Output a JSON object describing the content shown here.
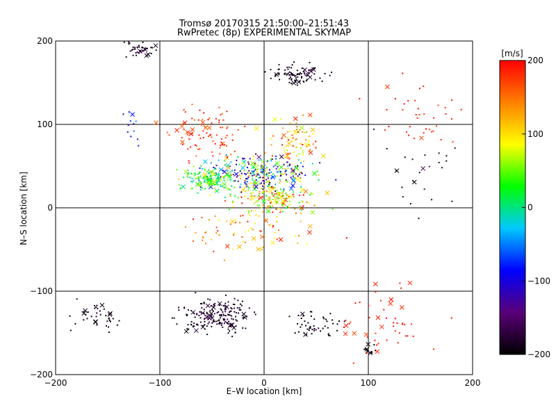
{
  "chart_data": {
    "type": "scatter",
    "title": "Tromsø 20170315 21:50:00–21:51:43",
    "subtitle": "RwPretec (8p) EXPERIMENTAL SKYMAP",
    "xlabel": "E–W location [km]",
    "ylabel": "N–S location [km]",
    "xlim": [
      -200,
      200
    ],
    "ylim": [
      -200,
      200
    ],
    "x_ticks": [
      -200,
      -100,
      0,
      100,
      200
    ],
    "y_ticks": [
      -200,
      -100,
      0,
      100,
      200
    ],
    "x_tick_labels": [
      "−200",
      "−100",
      "0",
      "100",
      "200"
    ],
    "y_tick_labels": [
      "−200",
      "−100",
      "0",
      "100",
      "200"
    ],
    "grid": true,
    "colorbar": {
      "label": "[m/s]",
      "range": [
        -200,
        200
      ],
      "ticks": [
        200,
        100,
        0,
        -100,
        -200
      ],
      "tick_labels": [
        "200",
        "100",
        "0",
        "−100",
        "−200"
      ],
      "colors": [
        "#000000",
        "#5a0078",
        "#0000ff",
        "#00c8ff",
        "#00ff00",
        "#ffff00",
        "#ff8000",
        "#ff0000"
      ]
    },
    "markers": [
      "dot",
      "x"
    ],
    "clusters": [
      {
        "cx": -5,
        "cy": 40,
        "sx": 45,
        "sy": 18,
        "n": 320,
        "vmin": -180,
        "vmax": 140
      },
      {
        "cx": -55,
        "cy": 35,
        "sx": 20,
        "sy": 12,
        "n": 140,
        "vmin": -20,
        "vmax": 80
      },
      {
        "cx": 10,
        "cy": 10,
        "sx": 30,
        "sy": 14,
        "n": 160,
        "vmin": 20,
        "vmax": 200
      },
      {
        "cx": -45,
        "cy": -130,
        "sx": 30,
        "sy": 18,
        "n": 190,
        "vmin": -200,
        "vmax": -160
      },
      {
        "cx": 30,
        "cy": 160,
        "sx": 22,
        "sy": 10,
        "n": 90,
        "vmin": -200,
        "vmax": -170
      },
      {
        "cx": -120,
        "cy": 190,
        "sx": 12,
        "sy": 8,
        "n": 40,
        "vmin": -200,
        "vmax": -170
      },
      {
        "cx": -160,
        "cy": -130,
        "sx": 20,
        "sy": 14,
        "n": 40,
        "vmin": -200,
        "vmax": -180
      },
      {
        "cx": 50,
        "cy": -140,
        "sx": 18,
        "sy": 12,
        "n": 50,
        "vmin": -200,
        "vmax": -180
      },
      {
        "cx": 100,
        "cy": -170,
        "sx": 8,
        "sy": 8,
        "n": 14,
        "vmin": -200,
        "vmax": -180
      },
      {
        "cx": -55,
        "cy": 90,
        "sx": 30,
        "sy": 25,
        "n": 90,
        "vmin": 150,
        "vmax": 200
      },
      {
        "cx": 30,
        "cy": 80,
        "sx": 20,
        "sy": 25,
        "n": 80,
        "vmin": 60,
        "vmax": 200
      },
      {
        "cx": 120,
        "cy": -130,
        "sx": 40,
        "sy": 35,
        "n": 50,
        "vmin": 170,
        "vmax": 200
      },
      {
        "cx": 140,
        "cy": 110,
        "sx": 40,
        "sy": 40,
        "n": 40,
        "vmin": 170,
        "vmax": 200
      },
      {
        "cx": 150,
        "cy": 40,
        "sx": 40,
        "sy": 50,
        "n": 25,
        "vmin": -200,
        "vmax": -150
      },
      {
        "cx": -10,
        "cy": -30,
        "sx": 55,
        "sy": 25,
        "n": 80,
        "vmin": 80,
        "vmax": 200
      },
      {
        "cx": -130,
        "cy": 100,
        "sx": 8,
        "sy": 20,
        "n": 12,
        "vmin": -140,
        "vmax": -40
      }
    ]
  }
}
